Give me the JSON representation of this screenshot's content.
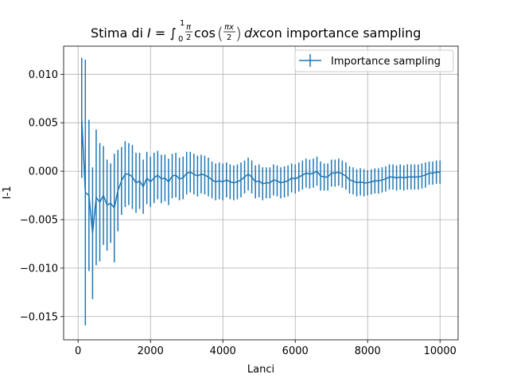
{
  "chart_data": {
    "type": "line",
    "title": {
      "prefix": "Stima di ",
      "var": "I",
      "eq": " = ∫",
      "sub": "0",
      "sup": "1",
      "frac_top": "π",
      "frac_bot": "2",
      "fn": "cos",
      "arg_top": "πx",
      "arg_bot": "2",
      "dx": "dx",
      "suffix": " con importance sampling"
    },
    "xlabel": "Lanci",
    "ylabel": "I-1",
    "xlim": [
      -400,
      10500
    ],
    "ylim": [
      -0.0174,
      0.0129
    ],
    "xticks": [
      0,
      2000,
      4000,
      6000,
      8000,
      10000
    ],
    "xtick_labels": [
      "0",
      "2000",
      "4000",
      "6000",
      "8000",
      "10000"
    ],
    "yticks": [
      0.01,
      0.005,
      0.0,
      -0.005,
      -0.01,
      -0.015
    ],
    "ytick_labels": [
      "0.010",
      "0.005",
      "0.000",
      "−0.005",
      "−0.010",
      "−0.015"
    ],
    "grid": true,
    "legend_position": "upper right",
    "color": "#1f77b4",
    "series": [
      {
        "name": "Importance sampling",
        "x": [
          100,
          200,
          300,
          400,
          500,
          600,
          700,
          800,
          900,
          1000,
          1100,
          1200,
          1300,
          1400,
          1500,
          1600,
          1700,
          1800,
          1900,
          2000,
          2100,
          2200,
          2300,
          2400,
          2500,
          2600,
          2700,
          2800,
          2900,
          3000,
          3100,
          3200,
          3300,
          3400,
          3500,
          3600,
          3700,
          3800,
          3900,
          4000,
          4100,
          4200,
          4300,
          4400,
          4500,
          4600,
          4700,
          4800,
          4900,
          5000,
          5100,
          5200,
          5300,
          5400,
          5500,
          5600,
          5700,
          5800,
          5900,
          6000,
          6100,
          6200,
          6300,
          6400,
          6500,
          6600,
          6700,
          6800,
          6900,
          7000,
          7100,
          7200,
          7300,
          7400,
          7500,
          7600,
          7700,
          7800,
          7900,
          8000,
          8100,
          8200,
          8300,
          8400,
          8500,
          8600,
          8700,
          8800,
          8900,
          9000,
          9100,
          9200,
          9300,
          9400,
          9500,
          9600,
          9700,
          9800,
          9900,
          10000
        ],
        "y": [
          0.0055,
          -0.0022,
          -0.0025,
          -0.0064,
          -0.0027,
          -0.0032,
          -0.0025,
          -0.0035,
          -0.0033,
          -0.0038,
          -0.002,
          -0.001,
          -0.0003,
          -0.0003,
          -0.0006,
          -0.0012,
          -0.001,
          -0.0016,
          -0.0007,
          -0.0011,
          -0.0007,
          -0.0004,
          -0.0008,
          -0.0007,
          -0.0011,
          -0.0005,
          -0.0004,
          -0.0008,
          -0.0007,
          -0.0002,
          -0.0001,
          -0.0003,
          -0.0005,
          -0.0003,
          -0.0004,
          -0.0006,
          -0.0009,
          -0.0011,
          -0.001,
          -0.0011,
          -0.0009,
          -0.0011,
          -0.0012,
          -0.0011,
          -0.0009,
          -0.0006,
          -0.0003,
          -0.0006,
          -0.0011,
          -0.001,
          -0.0013,
          -0.0012,
          -0.0012,
          -0.0009,
          -0.001,
          -0.0012,
          -0.0011,
          -0.001,
          -0.0007,
          -0.0008,
          -0.0006,
          -0.0004,
          -0.0002,
          -0.0003,
          -0.0002,
          0.0,
          -0.0005,
          -0.0006,
          -0.0006,
          -0.0002,
          -0.0002,
          -0.0001,
          -0.0003,
          -0.0005,
          -0.0009,
          -0.001,
          -0.0012,
          -0.0011,
          -0.0012,
          -0.0012,
          -0.0011,
          -0.001,
          -0.001,
          -0.0009,
          -0.0008,
          -0.0006,
          -0.0006,
          -0.0007,
          -0.0006,
          -0.0007,
          -0.0006,
          -0.0006,
          -0.0006,
          -0.0006,
          -0.0005,
          -0.0004,
          -0.0002,
          -0.0002,
          -0.0001,
          -0.0001
        ],
        "yerr": [
          0.0062,
          0.0137,
          0.0078,
          0.0068,
          0.007,
          0.0061,
          0.0051,
          0.0047,
          0.0041,
          0.0056,
          0.0042,
          0.0035,
          0.0034,
          0.0032,
          0.0033,
          0.0031,
          0.0029,
          0.0028,
          0.0027,
          0.0026,
          0.0026,
          0.0025,
          0.0025,
          0.0024,
          0.0024,
          0.0023,
          0.0023,
          0.0022,
          0.0022,
          0.0022,
          0.0021,
          0.0021,
          0.0021,
          0.002,
          0.002,
          0.002,
          0.0019,
          0.0019,
          0.0019,
          0.0019,
          0.0018,
          0.0018,
          0.0018,
          0.0018,
          0.0018,
          0.0017,
          0.0017,
          0.0017,
          0.0017,
          0.0017,
          0.0017,
          0.0016,
          0.0016,
          0.0016,
          0.0016,
          0.0016,
          0.0016,
          0.0016,
          0.0015,
          0.0015,
          0.0015,
          0.0015,
          0.0015,
          0.0015,
          0.0015,
          0.0015,
          0.0015,
          0.0014,
          0.0014,
          0.0014,
          0.0014,
          0.0014,
          0.0014,
          0.0014,
          0.0014,
          0.0014,
          0.0014,
          0.0014,
          0.0014,
          0.0013,
          0.0013,
          0.0013,
          0.0013,
          0.0013,
          0.0013,
          0.0013,
          0.0013,
          0.0013,
          0.0013,
          0.0013,
          0.0013,
          0.0013,
          0.0013,
          0.0013,
          0.0013,
          0.0013,
          0.0012,
          0.0012,
          0.0012,
          0.0012
        ]
      }
    ]
  }
}
